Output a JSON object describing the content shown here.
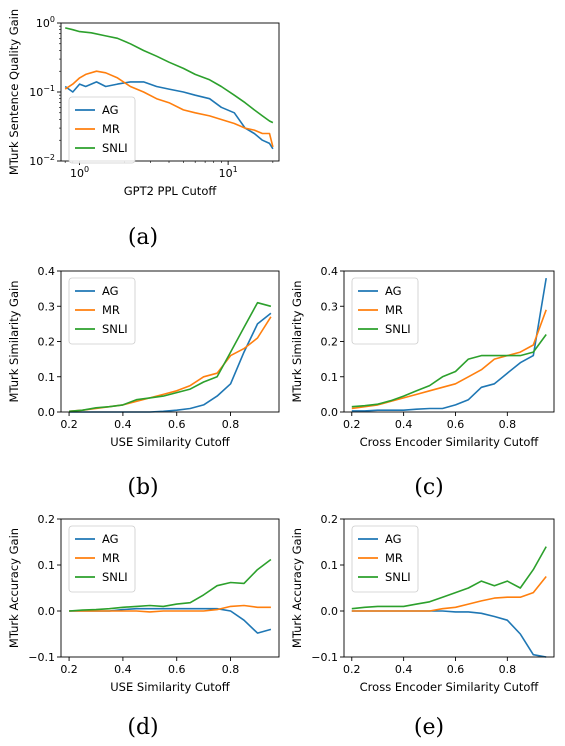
{
  "colors": {
    "AG": "#1f77b4",
    "MR": "#ff7f0e",
    "SNLI": "#2ca02c"
  },
  "captions": [
    "(a)",
    "(b)",
    "(c)",
    "(d)",
    "(e)"
  ],
  "chart_data": [
    {
      "id": "a",
      "type": "line",
      "xlabel": "GPT2 PPL Cutoff",
      "ylabel": "MTurk Sentence Quality Gain",
      "xscale": "log",
      "yscale": "log",
      "xlim": [
        0.75,
        22
      ],
      "ylim": [
        0.01,
        1.0
      ],
      "xticks": [
        {
          "v": 1,
          "label": "10",
          "sup": "0"
        },
        {
          "v": 10,
          "label": "10",
          "sup": "1"
        }
      ],
      "yticks": [
        {
          "v": 0.01,
          "label": "10",
          "sup": "−2"
        },
        {
          "v": 0.1,
          "label": "10",
          "sup": "−1"
        },
        {
          "v": 1,
          "label": "10",
          "sup": "0"
        }
      ],
      "legend": "left",
      "series": [
        {
          "name": "AG",
          "x": [
            0.8,
            0.9,
            1.0,
            1.1,
            1.3,
            1.5,
            1.8,
            2.2,
            2.7,
            3.3,
            4.0,
            5.0,
            6.0,
            7.5,
            9.0,
            11,
            13,
            15,
            17,
            19,
            20
          ],
          "y": [
            0.12,
            0.1,
            0.13,
            0.12,
            0.14,
            0.12,
            0.13,
            0.14,
            0.14,
            0.12,
            0.11,
            0.1,
            0.09,
            0.08,
            0.06,
            0.05,
            0.03,
            0.025,
            0.02,
            0.018,
            0.015
          ]
        },
        {
          "name": "MR",
          "x": [
            0.8,
            0.9,
            1.0,
            1.1,
            1.3,
            1.5,
            1.8,
            2.2,
            2.7,
            3.3,
            4.0,
            5.0,
            6.0,
            7.5,
            9.0,
            11,
            13,
            15,
            17,
            19,
            20
          ],
          "y": [
            0.11,
            0.13,
            0.16,
            0.18,
            0.2,
            0.19,
            0.16,
            0.12,
            0.1,
            0.08,
            0.07,
            0.055,
            0.05,
            0.045,
            0.04,
            0.035,
            0.03,
            0.028,
            0.025,
            0.025,
            0.016
          ]
        },
        {
          "name": "SNLI",
          "x": [
            0.8,
            0.9,
            1.0,
            1.2,
            1.5,
            1.8,
            2.2,
            2.7,
            3.3,
            4.0,
            5.0,
            6.0,
            7.5,
            9.0,
            11,
            13,
            15,
            17,
            19,
            20
          ],
          "y": [
            0.85,
            0.8,
            0.75,
            0.72,
            0.65,
            0.6,
            0.5,
            0.4,
            0.33,
            0.27,
            0.22,
            0.18,
            0.15,
            0.12,
            0.09,
            0.07,
            0.055,
            0.045,
            0.038,
            0.036
          ]
        }
      ]
    },
    {
      "id": "b",
      "type": "line",
      "xlabel": "USE Similarity Cutoff",
      "ylabel": "MTurk Similarity Gain",
      "xlim": [
        0.17,
        0.98
      ],
      "ylim": [
        0,
        0.4
      ],
      "xticks": [
        {
          "v": 0.2,
          "label": "0.2"
        },
        {
          "v": 0.4,
          "label": "0.4"
        },
        {
          "v": 0.6,
          "label": "0.6"
        },
        {
          "v": 0.8,
          "label": "0.8"
        }
      ],
      "yticks": [
        {
          "v": 0,
          "label": "0.0"
        },
        {
          "v": 0.1,
          "label": "0.1"
        },
        {
          "v": 0.2,
          "label": "0.2"
        },
        {
          "v": 0.3,
          "label": "0.3"
        },
        {
          "v": 0.4,
          "label": "0.4"
        }
      ],
      "legend": "top-left",
      "series": [
        {
          "name": "AG",
          "x": [
            0.2,
            0.25,
            0.3,
            0.35,
            0.4,
            0.45,
            0.5,
            0.55,
            0.6,
            0.65,
            0.7,
            0.75,
            0.8,
            0.85,
            0.9,
            0.95
          ],
          "y": [
            0,
            0,
            0,
            0,
            0,
            0,
            0,
            0.002,
            0.005,
            0.01,
            0.02,
            0.045,
            0.08,
            0.17,
            0.25,
            0.28
          ]
        },
        {
          "name": "MR",
          "x": [
            0.2,
            0.25,
            0.3,
            0.35,
            0.4,
            0.45,
            0.5,
            0.55,
            0.6,
            0.65,
            0.7,
            0.75,
            0.8,
            0.85,
            0.9,
            0.95
          ],
          "y": [
            0.002,
            0.005,
            0.01,
            0.015,
            0.02,
            0.03,
            0.04,
            0.05,
            0.06,
            0.075,
            0.1,
            0.11,
            0.16,
            0.18,
            0.21,
            0.27
          ]
        },
        {
          "name": "SNLI",
          "x": [
            0.2,
            0.25,
            0.3,
            0.35,
            0.4,
            0.45,
            0.5,
            0.55,
            0.6,
            0.65,
            0.7,
            0.75,
            0.8,
            0.85,
            0.9,
            0.95
          ],
          "y": [
            0.002,
            0.005,
            0.012,
            0.015,
            0.02,
            0.035,
            0.04,
            0.045,
            0.055,
            0.065,
            0.085,
            0.1,
            0.17,
            0.24,
            0.31,
            0.3
          ]
        }
      ]
    },
    {
      "id": "c",
      "type": "line",
      "xlabel": "Cross Encoder Similarity Cutoff",
      "ylabel": "MTurk Similarity Gain",
      "xlim": [
        0.17,
        0.98
      ],
      "ylim": [
        0,
        0.4
      ],
      "xticks": [
        {
          "v": 0.2,
          "label": "0.2"
        },
        {
          "v": 0.4,
          "label": "0.4"
        },
        {
          "v": 0.6,
          "label": "0.6"
        },
        {
          "v": 0.8,
          "label": "0.8"
        }
      ],
      "yticks": [
        {
          "v": 0,
          "label": "0.0"
        },
        {
          "v": 0.1,
          "label": "0.1"
        },
        {
          "v": 0.2,
          "label": "0.2"
        },
        {
          "v": 0.3,
          "label": "0.3"
        },
        {
          "v": 0.4,
          "label": "0.4"
        }
      ],
      "legend": "top-left",
      "series": [
        {
          "name": "AG",
          "x": [
            0.2,
            0.25,
            0.3,
            0.35,
            0.4,
            0.45,
            0.5,
            0.55,
            0.6,
            0.65,
            0.7,
            0.75,
            0.8,
            0.85,
            0.9,
            0.95
          ],
          "y": [
            0.003,
            0.003,
            0.005,
            0.005,
            0.005,
            0.008,
            0.01,
            0.01,
            0.02,
            0.035,
            0.07,
            0.08,
            0.11,
            0.14,
            0.16,
            0.38
          ]
        },
        {
          "name": "MR",
          "x": [
            0.2,
            0.25,
            0.3,
            0.35,
            0.4,
            0.45,
            0.5,
            0.55,
            0.6,
            0.65,
            0.7,
            0.75,
            0.8,
            0.85,
            0.9,
            0.95
          ],
          "y": [
            0.01,
            0.015,
            0.02,
            0.03,
            0.04,
            0.05,
            0.06,
            0.07,
            0.08,
            0.1,
            0.12,
            0.15,
            0.16,
            0.17,
            0.19,
            0.29
          ]
        },
        {
          "name": "SNLI",
          "x": [
            0.2,
            0.25,
            0.3,
            0.35,
            0.4,
            0.45,
            0.5,
            0.55,
            0.6,
            0.65,
            0.7,
            0.75,
            0.8,
            0.85,
            0.9,
            0.95
          ],
          "y": [
            0.015,
            0.018,
            0.022,
            0.032,
            0.045,
            0.06,
            0.075,
            0.1,
            0.115,
            0.15,
            0.16,
            0.16,
            0.16,
            0.16,
            0.17,
            0.22
          ]
        }
      ]
    },
    {
      "id": "d",
      "type": "line",
      "xlabel": "USE Similarity Cutoff",
      "ylabel": "MTurk Accuracy Gain",
      "xlim": [
        0.17,
        0.98
      ],
      "ylim": [
        -0.1,
        0.2
      ],
      "xticks": [
        {
          "v": 0.2,
          "label": "0.2"
        },
        {
          "v": 0.4,
          "label": "0.4"
        },
        {
          "v": 0.6,
          "label": "0.6"
        },
        {
          "v": 0.8,
          "label": "0.8"
        }
      ],
      "yticks": [
        {
          "v": -0.1,
          "label": "−0.1"
        },
        {
          "v": 0,
          "label": "0.0"
        },
        {
          "v": 0.1,
          "label": "0.1"
        },
        {
          "v": 0.2,
          "label": "0.2"
        }
      ],
      "legend": "top-left",
      "series": [
        {
          "name": "AG",
          "x": [
            0.2,
            0.25,
            0.3,
            0.35,
            0.4,
            0.45,
            0.5,
            0.55,
            0.6,
            0.65,
            0.7,
            0.75,
            0.8,
            0.85,
            0.9,
            0.95
          ],
          "y": [
            0,
            0,
            0,
            0,
            0.003,
            0.005,
            0.005,
            0.005,
            0.005,
            0.005,
            0.005,
            0.005,
            0,
            -0.02,
            -0.048,
            -0.04
          ]
        },
        {
          "name": "MR",
          "x": [
            0.2,
            0.25,
            0.3,
            0.35,
            0.4,
            0.45,
            0.5,
            0.55,
            0.6,
            0.65,
            0.7,
            0.75,
            0.8,
            0.85,
            0.9,
            0.95
          ],
          "y": [
            0,
            0,
            0,
            0,
            0,
            0,
            -0.002,
            0,
            0,
            0,
            0,
            0.003,
            0.01,
            0.012,
            0.008,
            0.008
          ]
        },
        {
          "name": "SNLI",
          "x": [
            0.2,
            0.25,
            0.3,
            0.35,
            0.4,
            0.45,
            0.5,
            0.55,
            0.6,
            0.65,
            0.7,
            0.75,
            0.8,
            0.85,
            0.9,
            0.95
          ],
          "y": [
            0,
            0.002,
            0.003,
            0.005,
            0.008,
            0.01,
            0.012,
            0.01,
            0.015,
            0.018,
            0.035,
            0.055,
            0.062,
            0.06,
            0.09,
            0.112
          ]
        }
      ]
    },
    {
      "id": "e",
      "type": "line",
      "xlabel": "Cross Encoder Similarity Cutoff",
      "ylabel": "MTurk Accuracy Gain",
      "xlim": [
        0.17,
        0.98
      ],
      "ylim": [
        -0.1,
        0.2
      ],
      "xticks": [
        {
          "v": 0.2,
          "label": "0.2"
        },
        {
          "v": 0.4,
          "label": "0.4"
        },
        {
          "v": 0.6,
          "label": "0.6"
        },
        {
          "v": 0.8,
          "label": "0.8"
        }
      ],
      "yticks": [
        {
          "v": -0.1,
          "label": "−0.1"
        },
        {
          "v": 0,
          "label": "0.0"
        },
        {
          "v": 0.1,
          "label": "0.1"
        },
        {
          "v": 0.2,
          "label": "0.2"
        }
      ],
      "legend": "top-left",
      "series": [
        {
          "name": "AG",
          "x": [
            0.2,
            0.25,
            0.3,
            0.35,
            0.4,
            0.45,
            0.5,
            0.55,
            0.6,
            0.65,
            0.7,
            0.75,
            0.8,
            0.85,
            0.9,
            0.95
          ],
          "y": [
            0,
            0,
            0,
            0,
            0,
            0,
            0,
            0,
            -0.002,
            -0.002,
            -0.005,
            -0.012,
            -0.02,
            -0.05,
            -0.095,
            -0.1
          ]
        },
        {
          "name": "MR",
          "x": [
            0.2,
            0.25,
            0.3,
            0.35,
            0.4,
            0.45,
            0.5,
            0.55,
            0.6,
            0.65,
            0.7,
            0.75,
            0.8,
            0.85,
            0.9,
            0.95
          ],
          "y": [
            0,
            0,
            0,
            0,
            0,
            0,
            0,
            0.005,
            0.008,
            0.015,
            0.022,
            0.028,
            0.03,
            0.03,
            0.04,
            0.075
          ]
        },
        {
          "name": "SNLI",
          "x": [
            0.2,
            0.25,
            0.3,
            0.35,
            0.4,
            0.45,
            0.5,
            0.55,
            0.6,
            0.65,
            0.7,
            0.75,
            0.8,
            0.85,
            0.9,
            0.95
          ],
          "y": [
            0.005,
            0.008,
            0.01,
            0.01,
            0.01,
            0.015,
            0.02,
            0.03,
            0.04,
            0.05,
            0.065,
            0.055,
            0.065,
            0.05,
            0.09,
            0.14
          ]
        }
      ]
    }
  ]
}
